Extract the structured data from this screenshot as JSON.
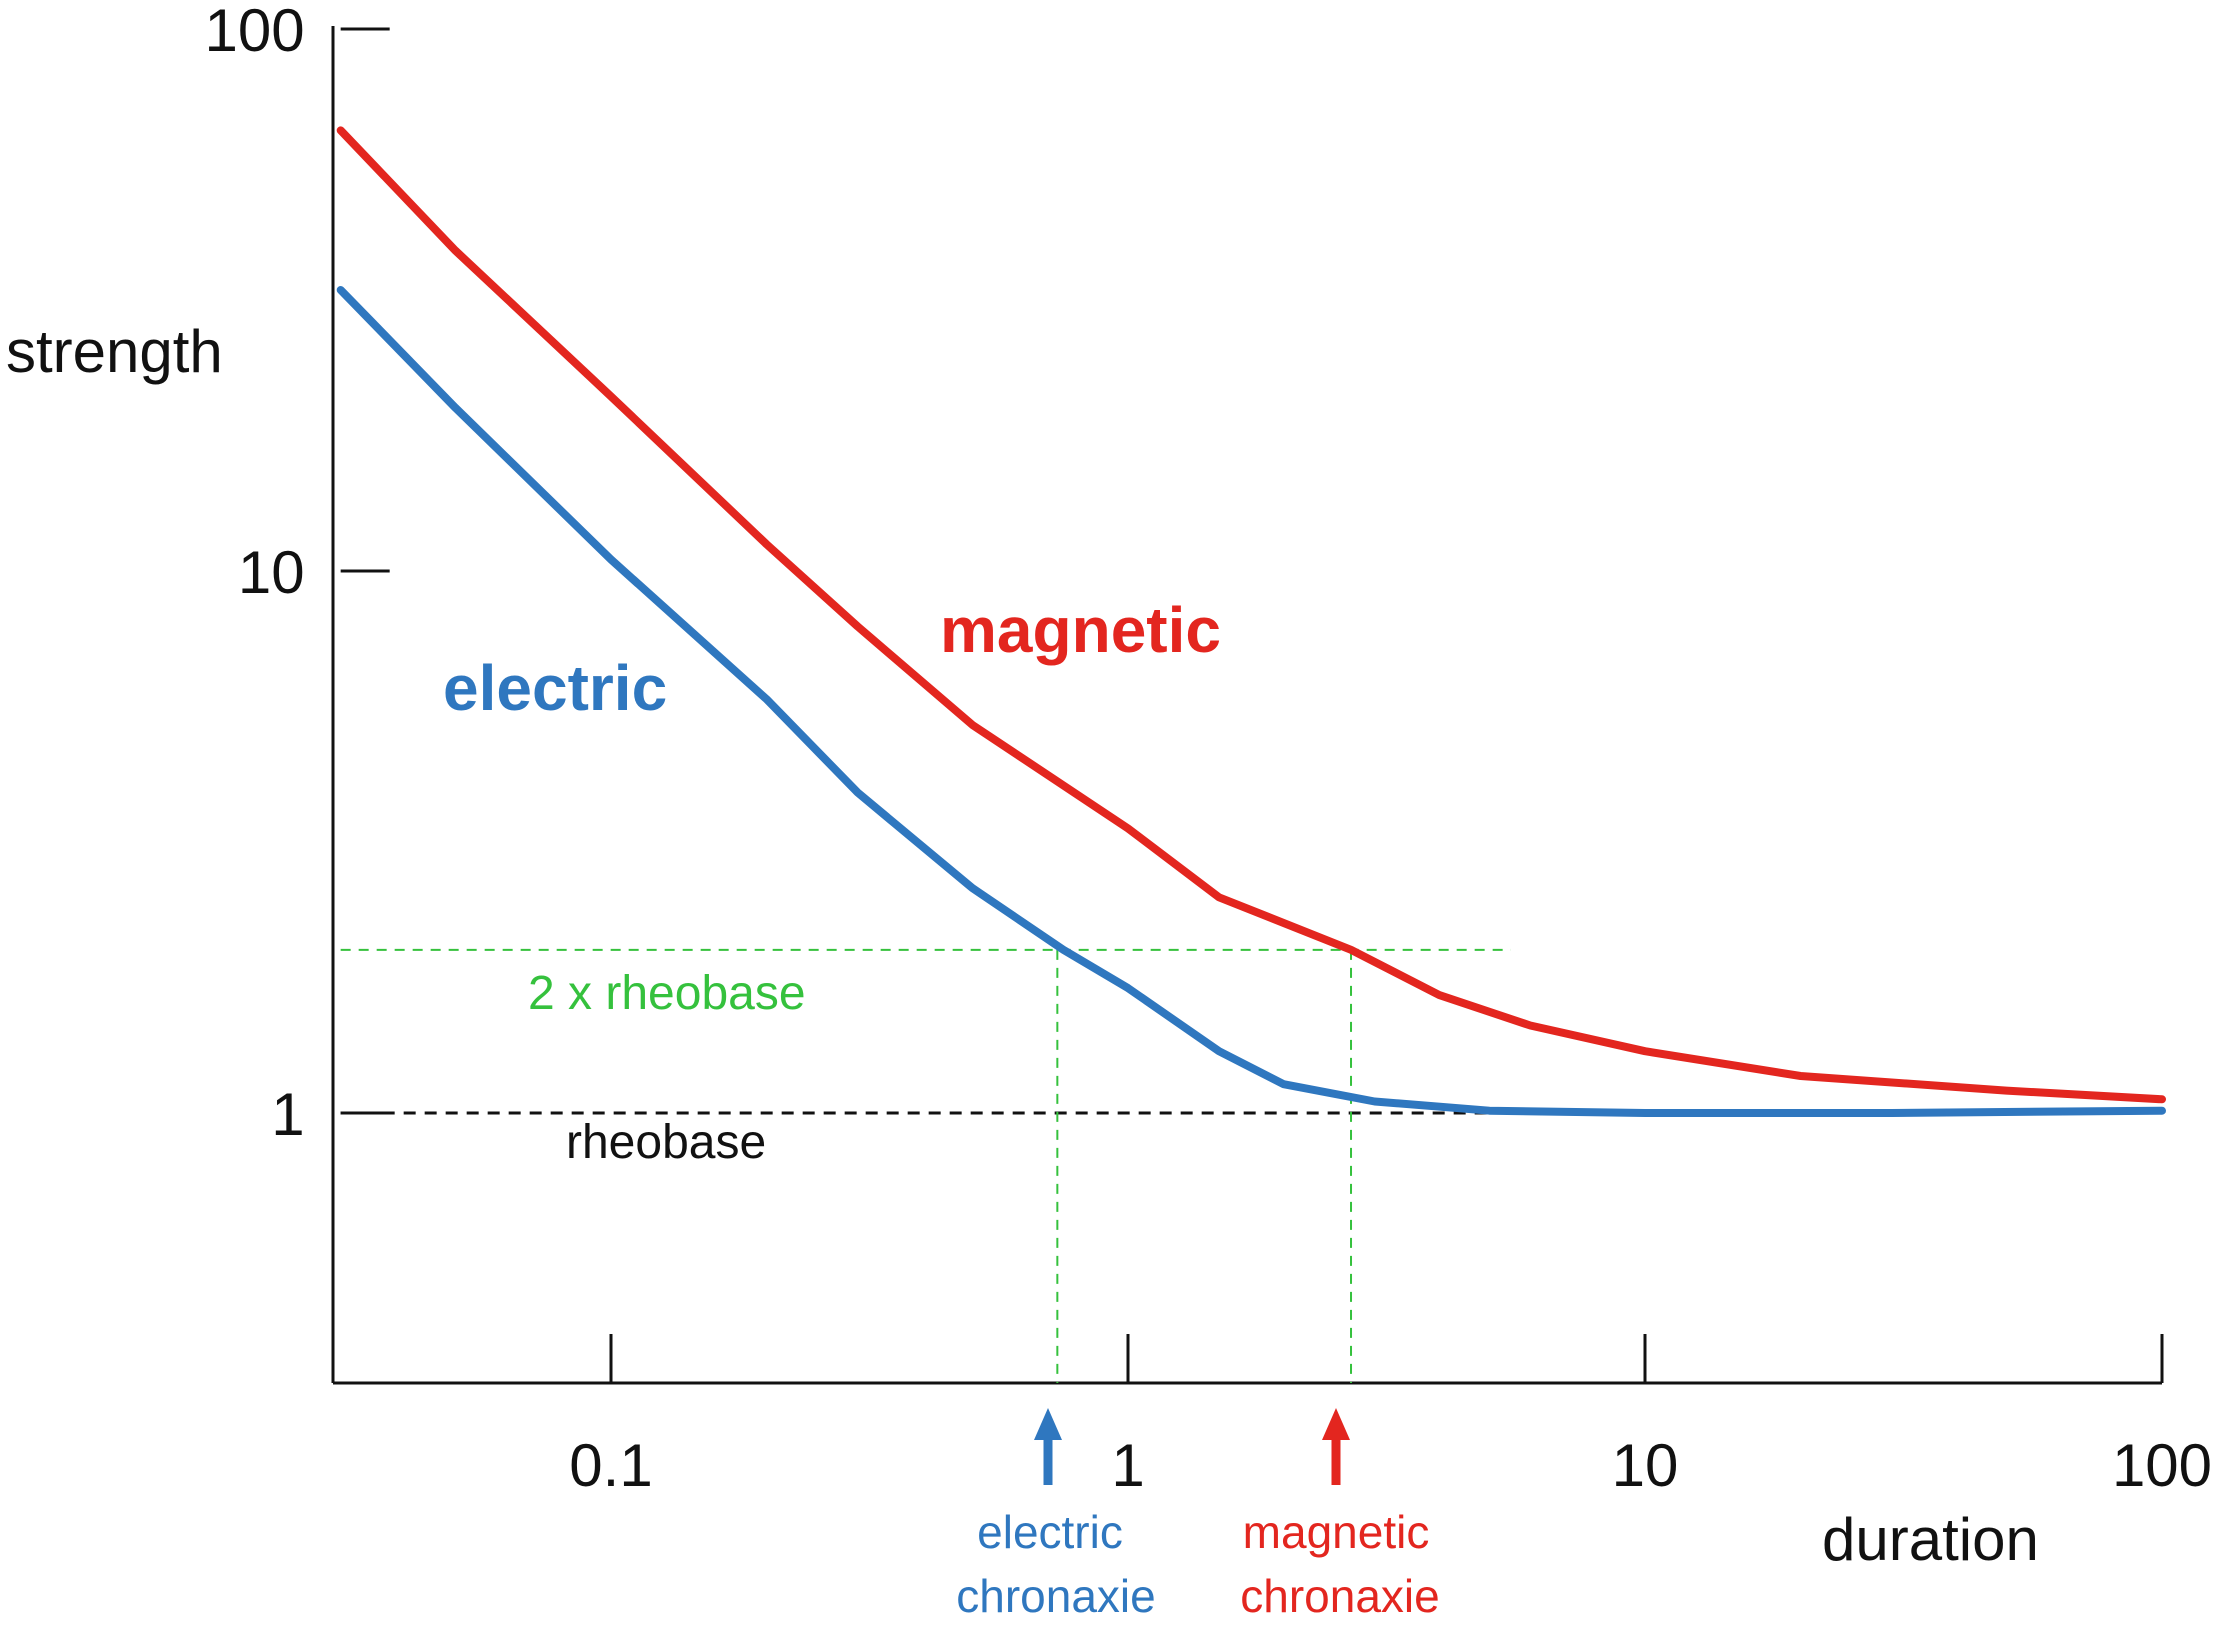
{
  "chart_data": {
    "type": "line",
    "title": "",
    "xlabel": "duration",
    "ylabel": "strength",
    "xscale": "log",
    "yscale": "log",
    "xlim": [
      0.03,
      100
    ],
    "ylim": [
      0.32,
      100
    ],
    "grid": false,
    "x_ticks": [
      {
        "value": 0.1,
        "label": "0.1"
      },
      {
        "value": 1,
        "label": "1"
      },
      {
        "value": 10,
        "label": "10"
      },
      {
        "value": 100,
        "label": "100"
      }
    ],
    "y_ticks": [
      {
        "value": 1,
        "label": "1"
      },
      {
        "value": 10,
        "label": "10"
      },
      {
        "value": 100,
        "label": "100"
      }
    ],
    "series": [
      {
        "name": "magnetic",
        "color": "#e3261f",
        "points": [
          [
            0.03,
            65
          ],
          [
            0.05,
            39
          ],
          [
            0.1,
            21
          ],
          [
            0.2,
            11.2
          ],
          [
            0.3,
            7.9
          ],
          [
            0.5,
            5.2
          ],
          [
            1,
            3.35
          ],
          [
            1.5,
            2.5
          ],
          [
            2.7,
            2.0
          ],
          [
            4,
            1.65
          ],
          [
            6,
            1.45
          ],
          [
            10,
            1.3
          ],
          [
            20,
            1.17
          ],
          [
            50,
            1.1
          ],
          [
            100,
            1.06
          ]
        ]
      },
      {
        "name": "electric",
        "color": "#2f77bf",
        "points": [
          [
            0.03,
            33
          ],
          [
            0.05,
            20
          ],
          [
            0.1,
            10.5
          ],
          [
            0.2,
            5.8
          ],
          [
            0.3,
            3.9
          ],
          [
            0.5,
            2.6
          ],
          [
            0.75,
            2.0
          ],
          [
            1,
            1.7
          ],
          [
            1.5,
            1.3
          ],
          [
            2,
            1.13
          ],
          [
            3,
            1.05
          ],
          [
            5,
            1.01
          ],
          [
            10,
            1.0
          ],
          [
            30,
            1.0
          ],
          [
            100,
            1.01
          ]
        ]
      }
    ],
    "reference_lines": {
      "rheobase": {
        "y": 1,
        "label": "rheobase",
        "color": "#111111"
      },
      "two_x_rheobase": {
        "y": 2,
        "x_end": 5.5,
        "label": "2 x rheobase",
        "color": "#35c13d"
      }
    },
    "chronaxie_lines": [
      {
        "x": 0.73,
        "y": 2,
        "color": "#35c13d"
      },
      {
        "x": 2.7,
        "y": 2,
        "color": "#35c13d"
      }
    ],
    "annotations": {
      "electric_chronaxie": {
        "x": 0.73,
        "line1": "electric",
        "line2": "chronaxie",
        "color": "#2f77bf"
      },
      "magnetic_chronaxie": {
        "x": 2.7,
        "line1": "magnetic",
        "line2": "chronaxie",
        "color": "#e3261f"
      }
    }
  }
}
